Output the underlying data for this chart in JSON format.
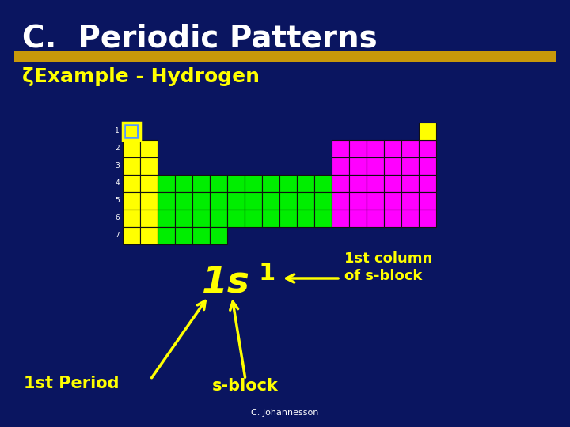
{
  "bg_color": "#0a1560",
  "title": "C.  Periodic Patterns",
  "title_color": "#ffffff",
  "title_fontsize": 28,
  "subtitle_bullet": "ζExample - Hydrogen",
  "subtitle_color": "#ffff00",
  "subtitle_fontsize": 18,
  "gold_bar_color": "#c8980a",
  "annotation_color": "#ffff00",
  "arrow_color": "#ffff00",
  "label_1st_period": "1st Period",
  "label_s_block": "s-block",
  "label_1st_column": "1st column\nof s-block",
  "credit": "C. Johannesson",
  "yellow": "#ffff00",
  "green": "#00ee00",
  "magenta": "#ff00ff",
  "blue_h": "#5599ff",
  "white": "#ffffff"
}
